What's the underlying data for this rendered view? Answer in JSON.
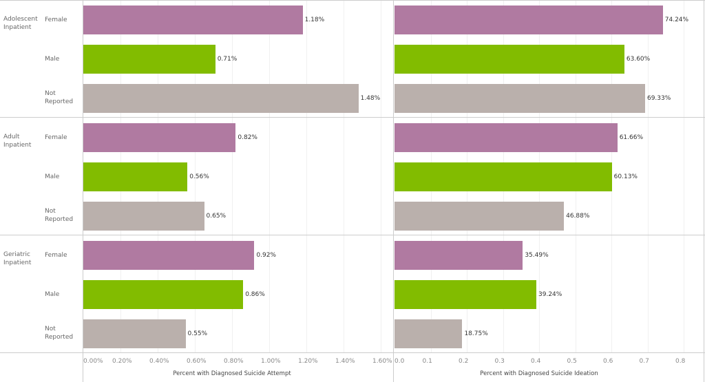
{
  "chart_data": {
    "type": "bar",
    "groups": [
      "Adolescent Inpatient",
      "Adult Inpatient",
      "Geriatric Inpatient"
    ],
    "categories": [
      "Female",
      "Male",
      "Not Reported"
    ],
    "colors": {
      "Female": "#b07aa1",
      "Male": "#82bc00",
      "Not Reported": "#bab0ac"
    },
    "panels": [
      {
        "xlabel": "Percent with Diagnosed Suicide Attempt",
        "xlim": [
          0,
          1.6
        ],
        "ticks": [
          "0.00%",
          "0.20%",
          "0.40%",
          "0.60%",
          "0.80%",
          "1.00%",
          "1.20%",
          "1.40%",
          "1.60%"
        ],
        "tick_values": [
          0,
          0.2,
          0.4,
          0.6,
          0.8,
          1.0,
          1.2,
          1.4,
          1.6
        ],
        "values": [
          [
            1.18,
            0.71,
            1.48
          ],
          [
            0.82,
            0.56,
            0.65
          ],
          [
            0.92,
            0.86,
            0.55
          ]
        ],
        "labels": [
          [
            "1.18%",
            "0.71%",
            "1.48%"
          ],
          [
            "0.82%",
            "0.56%",
            "0.65%"
          ],
          [
            "0.92%",
            "0.86%",
            "0.55%"
          ]
        ]
      },
      {
        "xlabel": "Percent with Diagnosed Suicide Ideation",
        "xlim": [
          0,
          0.8
        ],
        "ticks": [
          "0.0",
          "0.1",
          "0.2",
          "0.3",
          "0.4",
          "0.5",
          "0.6",
          "0.7",
          "0.8"
        ],
        "tick_values": [
          0,
          0.1,
          0.2,
          0.3,
          0.4,
          0.5,
          0.6,
          0.7,
          0.8
        ],
        "values": [
          [
            0.7424,
            0.636,
            0.6933
          ],
          [
            0.6166,
            0.6013,
            0.4688
          ],
          [
            0.3549,
            0.3924,
            0.1875
          ]
        ],
        "labels": [
          [
            "74.24%",
            "63.60%",
            "69.33%"
          ],
          [
            "61.66%",
            "60.13%",
            "46.88%"
          ],
          [
            "35.49%",
            "39.24%",
            "18.75%"
          ]
        ]
      }
    ]
  }
}
